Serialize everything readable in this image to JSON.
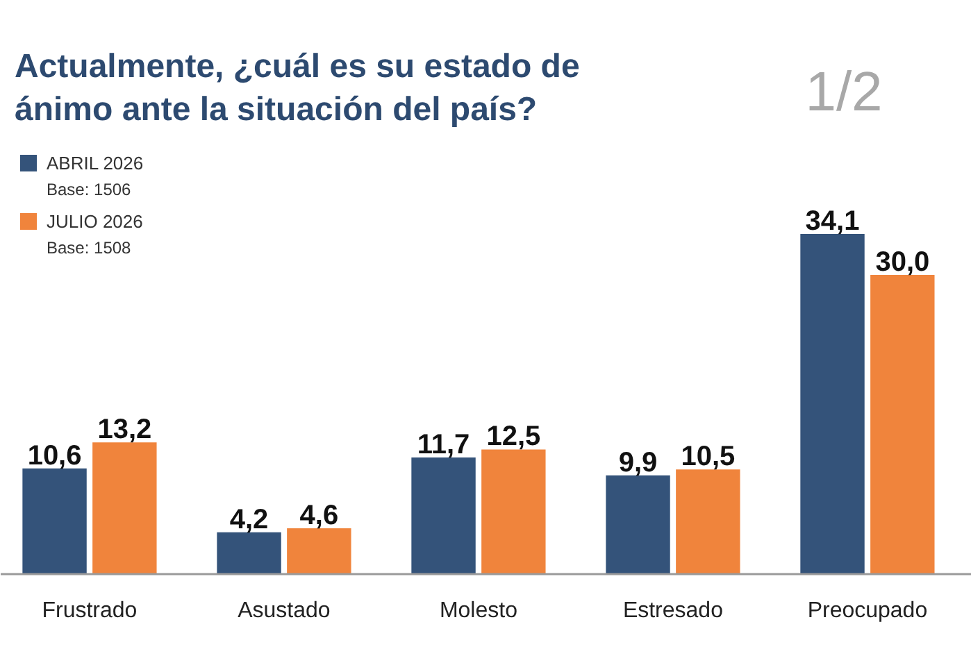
{
  "chart_data": {
    "type": "bar",
    "title": "Actualmente, ¿cuál es su estado de ánimo ante la situación del país?",
    "categories": [
      "Frustrado",
      "Asustado",
      "Molesto",
      "Estresado",
      "Preocupado"
    ],
    "series": [
      {
        "name": "ABRIL 2026",
        "color": "#34537a",
        "values": [
          10.6,
          4.2,
          11.7,
          9.9,
          34.1
        ],
        "value_labels": [
          "10,6",
          "4,2",
          "11,7",
          "9,9",
          "34,1"
        ]
      },
      {
        "name": "JULIO 2026",
        "color": "#f0843c",
        "values": [
          13.2,
          4.6,
          12.5,
          10.5,
          30.0
        ],
        "value_labels": [
          "13,2",
          "4,6",
          "12,5",
          "10,5",
          "30,0"
        ]
      }
    ],
    "annotations": [
      "Base: 1506",
      "Base: 1508",
      "1/2"
    ],
    "legend": "top left",
    "grid": false,
    "tick_labels": "x"
  }
}
